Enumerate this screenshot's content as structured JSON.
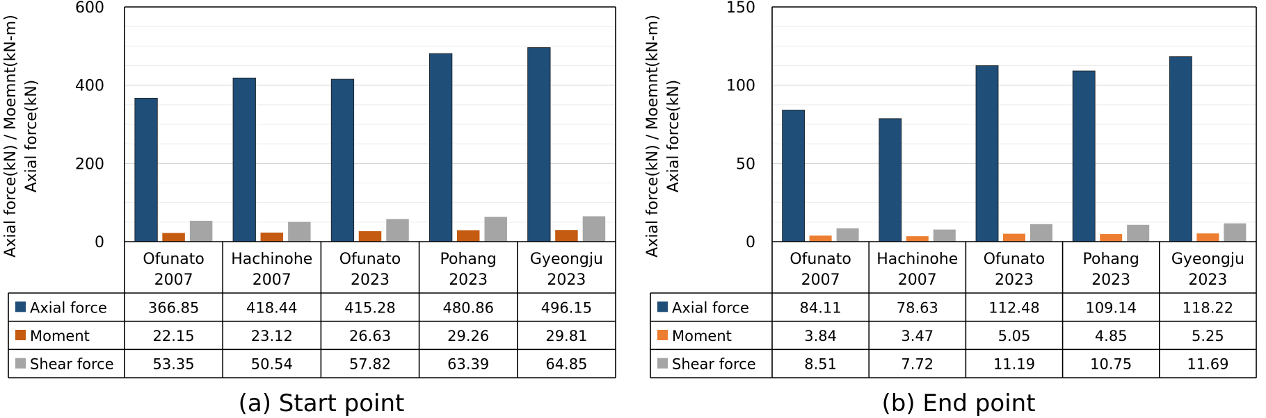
{
  "chart_data": [
    {
      "type": "bar",
      "caption": "(a) Start point",
      "ylabel_lines": [
        "Axial force(kN) / Moemnt(kN-m)",
        "Axial force(kN)"
      ],
      "ylim": [
        0,
        600
      ],
      "yticks": [
        0,
        200,
        400,
        600
      ],
      "grid": true,
      "categories": [
        [
          "Ofunato",
          "2007"
        ],
        [
          "Hachinohe",
          "2007"
        ],
        [
          "Ofunato",
          "2023"
        ],
        [
          "Pohang",
          "2023"
        ],
        [
          "Gyeongju",
          "2023"
        ]
      ],
      "series": [
        {
          "name": "Axial force",
          "color": "#1f4e79",
          "values": [
            366.85,
            418.44,
            415.28,
            480.86,
            496.15
          ],
          "labels": [
            "366.85",
            "418.44",
            "415.28",
            "480.86",
            "496.15"
          ]
        },
        {
          "name": "Moment",
          "color": "#c55a11",
          "values": [
            22.15,
            23.12,
            26.63,
            29.26,
            29.81
          ],
          "labels": [
            "22.15",
            "23.12",
            "26.63",
            "29.26",
            "29.81"
          ]
        },
        {
          "name": "Shear force",
          "color": "#a5a5a5",
          "values": [
            53.35,
            50.54,
            57.82,
            63.39,
            64.85
          ],
          "labels": [
            "53.35",
            "50.54",
            "57.82",
            "63.39",
            "64.85"
          ]
        }
      ]
    },
    {
      "type": "bar",
      "caption": "(b) End point",
      "ylabel_lines": [
        "Axial force(kN) / Moemnt(kN-m)",
        "Axial force(kN)"
      ],
      "ylim": [
        0,
        150
      ],
      "yticks": [
        0,
        50,
        100,
        150
      ],
      "grid": true,
      "categories": [
        [
          "Ofunato",
          "2007"
        ],
        [
          "Hachinohe",
          "2007"
        ],
        [
          "Ofunato",
          "2023"
        ],
        [
          "Pohang",
          "2023"
        ],
        [
          "Gyeongju",
          "2023"
        ]
      ],
      "series": [
        {
          "name": "Axial force",
          "color": "#1f4e79",
          "values": [
            84.11,
            78.63,
            112.48,
            109.14,
            118.22
          ],
          "labels": [
            "84.11",
            "78.63",
            "112.48",
            "109.14",
            "118.22"
          ]
        },
        {
          "name": "Moment",
          "color": "#ed7d31",
          "values": [
            3.84,
            3.47,
            5.05,
            4.85,
            5.25
          ],
          "labels": [
            "3.84",
            "3.47",
            "5.05",
            "4.85",
            "5.25"
          ]
        },
        {
          "name": "Shear force",
          "color": "#a5a5a5",
          "values": [
            8.51,
            7.72,
            11.19,
            10.75,
            11.69
          ],
          "labels": [
            "8.51",
            "7.72",
            "11.19",
            "10.75",
            "11.69"
          ]
        }
      ]
    }
  ]
}
